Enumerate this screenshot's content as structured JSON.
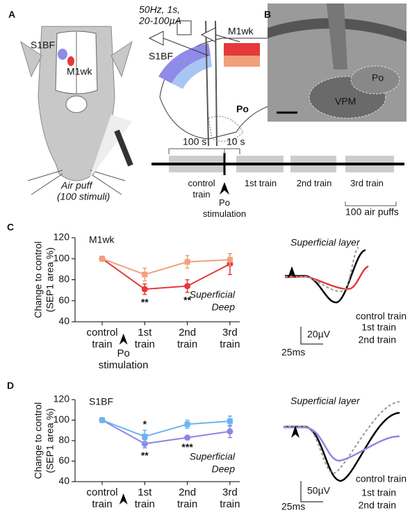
{
  "panels": [
    "A",
    "B",
    "C",
    "D"
  ],
  "panel_a": {
    "rat_labels": [
      "S1BF",
      "M1wk"
    ],
    "air_puff": [
      "Air puff",
      "(100 stimuli)"
    ],
    "stimulus": [
      "50Hz, 1s,",
      "20-100µA"
    ],
    "slice_labels": [
      "S1BF",
      "M1wk",
      "Po"
    ]
  },
  "panel_b": {
    "regions": [
      "VPM",
      "Po"
    ]
  },
  "timeline": {
    "durations": [
      "100 s",
      "10 s"
    ],
    "trains": [
      "control train",
      "1st train",
      "2nd train",
      "3rd train"
    ],
    "stimulation": "Po stimulation",
    "puffs": "100 air puffs"
  },
  "chart_data": [
    {
      "type": "line",
      "title": "M1wk",
      "ylabel": [
        "Change to control",
        "(SEP1 area %)"
      ],
      "categories": [
        "control train",
        "1st train",
        "2nd train",
        "3rd train"
      ],
      "stimulation": "Po stimulation",
      "ylim": [
        40,
        120
      ],
      "yticks": [
        40,
        60,
        80,
        100,
        120
      ],
      "series": [
        {
          "name": "Superficial",
          "color": "#e5393a",
          "marker": "circle",
          "values": [
            100,
            71,
            74,
            95
          ],
          "errors": [
            0,
            5,
            6,
            10
          ]
        },
        {
          "name": "Deep",
          "color": "#f2a07b",
          "marker": "square",
          "values": [
            100,
            85,
            97,
            99
          ],
          "errors": [
            0,
            6,
            6,
            6
          ]
        }
      ],
      "annotations": [
        "**",
        "**"
      ]
    },
    {
      "type": "line",
      "title": "S1BF",
      "ylabel": [
        "Change to control",
        "(SEP1 area %)"
      ],
      "categories": [
        "control train",
        "1st train",
        "2nd train",
        "3rd train"
      ],
      "ylim": [
        40,
        120
      ],
      "yticks": [
        40,
        60,
        80,
        100,
        120
      ],
      "series": [
        {
          "name": "Superficial",
          "color": "#8e84e6",
          "marker": "circle",
          "values": [
            100,
            77,
            83,
            89
          ],
          "errors": [
            0,
            4,
            2,
            6
          ]
        },
        {
          "name": "Deep",
          "color": "#6ab4ee",
          "marker": "square",
          "values": [
            100,
            84,
            96,
            99
          ],
          "errors": [
            0,
            6,
            4,
            5
          ]
        }
      ],
      "annotations": [
        "*",
        "**",
        "***"
      ]
    }
  ],
  "traces": [
    {
      "title": "Superficial layer",
      "legend": [
        "control train",
        "1st train",
        "2nd train"
      ],
      "scale": [
        "20µV",
        "25ms"
      ]
    },
    {
      "title": "Superficial layer",
      "legend": [
        "control train",
        "1st train",
        "2nd train"
      ],
      "scale": [
        "50µV",
        "25ms"
      ]
    }
  ]
}
